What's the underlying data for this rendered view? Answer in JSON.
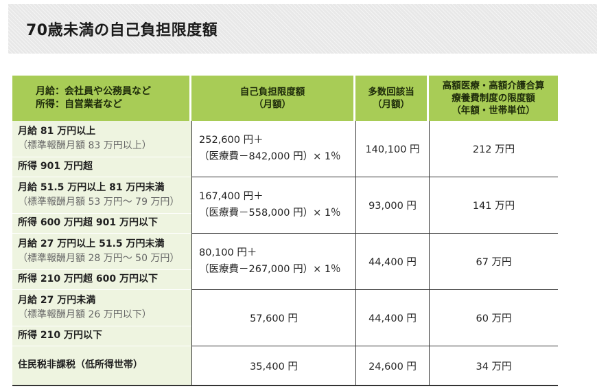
{
  "title": "70歳未満の自己負担限度額",
  "headers": {
    "category_line1": "月給：会社員や公務員など",
    "category_line2": "所得：自営業者など",
    "limit_line1": "自己負担限度額",
    "limit_line2": "（月額）",
    "multi_line1": "多数回該当",
    "multi_line2": "（月額）",
    "combined_line1": "高額医療・高額介護合算",
    "combined_line2": "療養費制度の限度額",
    "combined_line3": "（年額・世帯単位）"
  },
  "rows": [
    {
      "salary": "月給 81 万円以上",
      "standard": "（標準報酬月額 83 万円以上）",
      "income": "所得 901 万円超",
      "limit_line1": "252,600 円＋",
      "limit_line2": "（医療費－842,000 円）× 1％",
      "multi": "140,100 円",
      "combined": "212 万円"
    },
    {
      "salary": "月給 51.5 万円以上 81 万円未満",
      "standard": "（標準報酬月額 53 万円～ 79 万円）",
      "income": "所得 600 万円超 901 万円以下",
      "limit_line1": "167,400 円＋",
      "limit_line2": "（医療費－558,000 円）× 1％",
      "multi": "93,000 円",
      "combined": "141 万円"
    },
    {
      "salary": "月給 27 万円以上 51.5 万円未満",
      "standard": "（標準報酬月額 28 万円～ 50 万円）",
      "income": "所得 210 万円超 600 万円以下",
      "limit_line1": "80,100 円＋",
      "limit_line2": "（医療費－267,000 円）× 1％",
      "multi": "44,400 円",
      "combined": "67 万円"
    },
    {
      "salary": "月給 27 万円未満",
      "standard": "（標準報酬月額 26 万円以下）",
      "income": "所得 210 万円以下",
      "limit": "57,600 円",
      "multi": "44,400 円",
      "combined": "60 万円"
    },
    {
      "label": "住民税非課税（低所得世帯）",
      "limit": "35,400 円",
      "multi": "24,600 円",
      "combined": "34 万円"
    }
  ],
  "colors": {
    "header_bg": "#a8cc56",
    "label_bg": "#eef4e0",
    "banner_bg": "#e8e8e8"
  }
}
